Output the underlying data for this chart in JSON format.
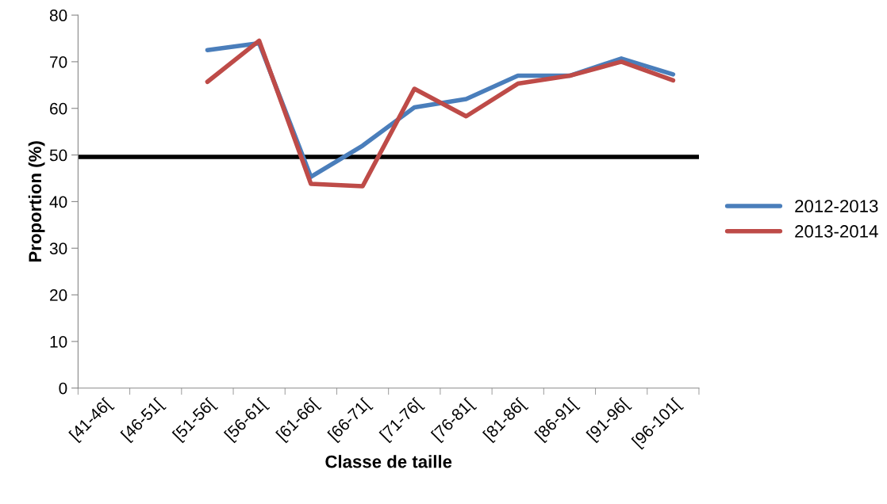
{
  "chart_data": {
    "type": "line",
    "xlabel": "Classe de taille",
    "ylabel": "Proportion (%)",
    "categories": [
      "[41-46[",
      "[46-51[",
      "[51-56[",
      "[56-61[",
      "[61-66[",
      "[66-71[",
      "[71-76[",
      "[76-81[",
      "[81-86[",
      "[86-91[",
      "[91-96[",
      "[96-101["
    ],
    "series": [
      {
        "name": "2012-2013",
        "color": "#4a7ebb",
        "values": [
          null,
          null,
          72.5,
          74,
          45.3,
          52,
          60.2,
          62,
          67,
          67,
          70.7,
          67.3
        ]
      },
      {
        "name": "2013-2014",
        "color": "#be4b48",
        "values": [
          null,
          null,
          65.7,
          74.5,
          43.8,
          43.3,
          64.2,
          58.3,
          65.3,
          67,
          70,
          66
        ]
      }
    ],
    "ylim": [
      0,
      80
    ],
    "yticks": [
      0,
      10,
      20,
      30,
      40,
      50,
      60,
      70,
      80
    ],
    "ref_lines": [
      {
        "axis": "y",
        "value": 49.6,
        "color": "#000000"
      }
    ],
    "legend": "right",
    "grid": false
  }
}
